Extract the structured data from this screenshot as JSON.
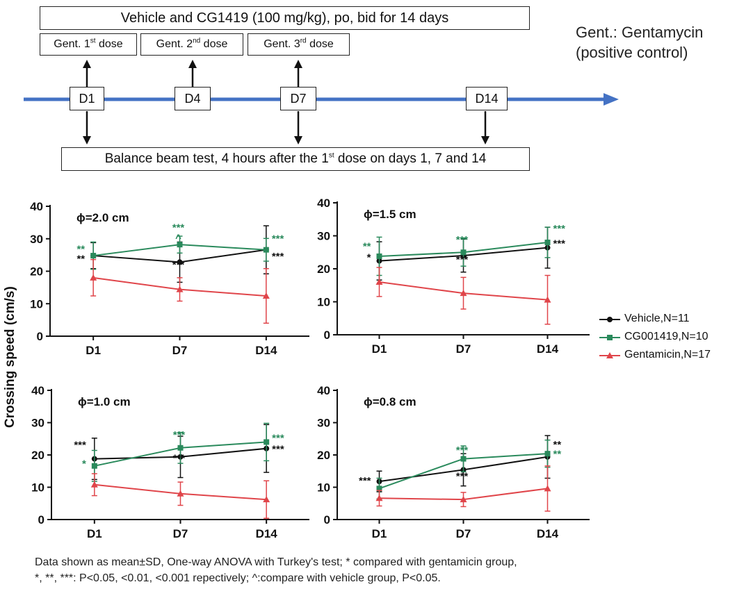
{
  "schedule": {
    "treatment_label": "Vehicle and CG1419 (100 mg/kg), po, bid for 14 days",
    "doses": [
      {
        "label": "Gent. 1",
        "sup": "st",
        "suffix": " dose"
      },
      {
        "label": "Gent. 2",
        "sup": "nd",
        "suffix": " dose"
      },
      {
        "label": "Gent. 3",
        "sup": "rd",
        "suffix": " dose"
      }
    ],
    "days": [
      "D1",
      "D4",
      "D7",
      "D14"
    ],
    "test_label_pre": "Balance beam test, 4 hours after the 1",
    "test_label_sup": "st",
    "test_label_post": " dose on days 1, 7 and 14",
    "note_line1": "Gent.: Gentamycin",
    "note_line2": "(positive control)"
  },
  "colors": {
    "vehicle": "#111111",
    "cg": "#2a8a5c",
    "gent": "#e0454a",
    "arrow": "#4472c4"
  },
  "legend": [
    "Vehicle,N=11",
    "CG001419,N=10",
    "Gentamicin,N=17"
  ],
  "footnote": {
    "line1": "Data shown as mean±SD, One-way ANOVA with Turkey's test; * compared with gentamicin group,",
    "line2": "*, **, ***: P<0.05, <0.01, <0.001 repectively; ^:compare with vehicle group, P<0.05."
  },
  "chart_data": [
    {
      "type": "line",
      "title": "ϕ=2.0 cm",
      "ylabel": "Crossing speed (cm/s)",
      "categories": [
        "D1",
        "D7",
        "D14"
      ],
      "ylim": [
        0,
        40
      ],
      "yticks": [
        0,
        10,
        20,
        30,
        40
      ],
      "series": [
        {
          "name": "Vehicle,N=11",
          "values": [
            24.8,
            22.8,
            26.6
          ],
          "sd": [
            4.0,
            6.2,
            7.4
          ]
        },
        {
          "name": "CG001419,N=10",
          "values": [
            24.8,
            28.2,
            26.6
          ],
          "sd": [
            4.2,
            2.6,
            3.5
          ]
        },
        {
          "name": "Gentamicin,N=17",
          "values": [
            18.0,
            14.4,
            12.4
          ],
          "sd": [
            5.6,
            3.6,
            8.4
          ]
        }
      ],
      "annotations": [
        {
          "x": "D1",
          "series": "CG001419,N=10",
          "text": "**",
          "y": 25.8
        },
        {
          "x": "D1",
          "series": "Vehicle,N=11",
          "text": "**",
          "y": 22.8
        },
        {
          "x": "D7",
          "series": "CG001419,N=10",
          "text": "***",
          "y": 32.4
        },
        {
          "x": "D7",
          "series": "CG001419,N=10",
          "text": "^",
          "y": 29.2
        },
        {
          "x": "D7",
          "series": "Vehicle,N=11",
          "text": "***",
          "y": 21.0
        },
        {
          "x": "D14",
          "series": "CG001419,N=10",
          "text": "***",
          "y": 29.0
        },
        {
          "x": "D14",
          "series": "Vehicle,N=11",
          "text": "***",
          "y": 23.5
        }
      ]
    },
    {
      "type": "line",
      "title": "ϕ=1.5 cm",
      "categories": [
        "D1",
        "D7",
        "D14"
      ],
      "ylim": [
        0,
        40
      ],
      "yticks": [
        0,
        10,
        20,
        30,
        40
      ],
      "series": [
        {
          "name": "Vehicle,N=11",
          "values": [
            22.4,
            24.0,
            26.4
          ],
          "sd": [
            5.8,
            5.0,
            6.2
          ]
        },
        {
          "name": "CG001419,N=10",
          "values": [
            23.8,
            25.0,
            28.0
          ],
          "sd": [
            5.8,
            4.2,
            4.6
          ]
        },
        {
          "name": "Gentamicin,N=17",
          "values": [
            16.0,
            12.6,
            10.6
          ],
          "sd": [
            4.4,
            4.8,
            7.4
          ]
        }
      ],
      "annotations": [
        {
          "x": "D1",
          "series": "CG001419,N=10",
          "text": "**",
          "y": 25.8
        },
        {
          "x": "D1",
          "series": "Vehicle,N=11",
          "text": "*",
          "y": 22.4
        },
        {
          "x": "D7",
          "series": "CG001419,N=10",
          "text": "***",
          "y": 27.8
        },
        {
          "x": "D7",
          "series": "Vehicle,N=11",
          "text": "***",
          "y": 21.8
        },
        {
          "x": "D14",
          "series": "CG001419,N=10",
          "text": "***",
          "y": 31.2
        },
        {
          "x": "D14",
          "series": "Vehicle,N=11",
          "text": "***",
          "y": 26.6
        }
      ]
    },
    {
      "type": "line",
      "title": "ϕ=1.0 cm",
      "categories": [
        "D1",
        "D7",
        "D14"
      ],
      "ylim": [
        0,
        40
      ],
      "yticks": [
        0,
        10,
        20,
        30,
        40
      ],
      "series": [
        {
          "name": "Vehicle,N=11",
          "values": [
            18.8,
            19.4,
            22.0
          ],
          "sd": [
            6.4,
            6.4,
            7.4
          ]
        },
        {
          "name": "CG001419,N=10",
          "values": [
            16.6,
            22.2,
            24.0
          ],
          "sd": [
            4.8,
            4.8,
            5.8
          ]
        },
        {
          "name": "Gentamicin,N=17",
          "values": [
            10.8,
            8.0,
            6.2
          ],
          "sd": [
            3.4,
            3.6,
            5.8
          ]
        }
      ],
      "annotations": [
        {
          "x": "D1",
          "series": "Vehicle,N=11",
          "text": "***",
          "y": 22.0
        },
        {
          "x": "D1",
          "series": "CG001419,N=10",
          "text": "*",
          "y": 16.2
        },
        {
          "x": "D7",
          "series": "CG001419,N=10",
          "text": "***",
          "y": 25.2
        },
        {
          "x": "D7",
          "series": "Vehicle,N=11",
          "text": "***",
          "y": 18.0
        },
        {
          "x": "D14",
          "series": "CG001419,N=10",
          "text": "***",
          "y": 24.2
        },
        {
          "x": "D14",
          "series": "Vehicle,N=11",
          "text": "***",
          "y": 20.8
        }
      ]
    },
    {
      "type": "line",
      "title": "ϕ=0.8 cm",
      "categories": [
        "D1",
        "D7",
        "D14"
      ],
      "ylim": [
        0,
        40
      ],
      "yticks": [
        0,
        10,
        20,
        30,
        40
      ],
      "series": [
        {
          "name": "Vehicle,N=11",
          "values": [
            11.8,
            15.4,
            19.4
          ],
          "sd": [
            3.2,
            5.0,
            6.6
          ]
        },
        {
          "name": "CG001419,N=10",
          "values": [
            9.6,
            18.8,
            20.4
          ],
          "sd": [
            3.2,
            4.0,
            4.2
          ]
        },
        {
          "name": "Gentamicin,N=17",
          "values": [
            6.6,
            6.2,
            9.6
          ],
          "sd": [
            2.4,
            2.2,
            7.0
          ]
        }
      ],
      "annotations": [
        {
          "x": "D1",
          "series": "Vehicle,N=11",
          "text": "***",
          "y": 11.0
        },
        {
          "x": "D7",
          "series": "CG001419,N=10",
          "text": "***",
          "y": 20.4
        },
        {
          "x": "D7",
          "series": "Vehicle,N=11",
          "text": "***",
          "y": 12.4
        },
        {
          "x": "D14",
          "series": "Vehicle,N=11",
          "text": "**",
          "y": 22.2
        },
        {
          "x": "D14",
          "series": "CG001419,N=10",
          "text": "**",
          "y": 19.2
        }
      ]
    }
  ]
}
